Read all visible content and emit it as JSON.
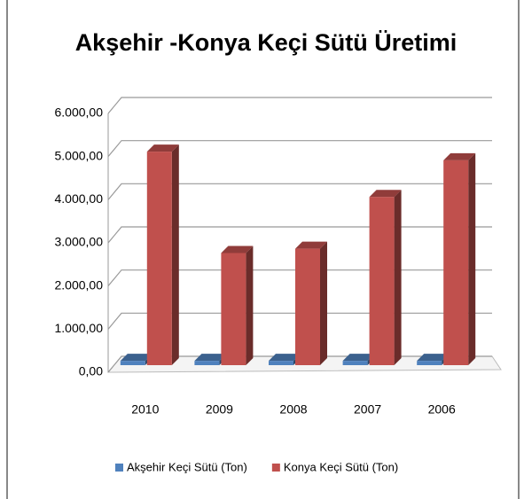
{
  "chart_data": {
    "type": "bar3d",
    "title": "Akşehir -Konya Keçi Sütü Üretimi",
    "categories": [
      "2010",
      "2009",
      "2008",
      "2007",
      "2006"
    ],
    "series": [
      {
        "name": "Akşehir Keçi Sütü (Ton)",
        "color": "#4f81bd",
        "values": [
          100,
          100,
          100,
          100,
          100
        ]
      },
      {
        "name": "Konya Keçi Sütü (Ton)",
        "color": "#c0504d",
        "values": [
          4950,
          2600,
          2700,
          3900,
          4750
        ]
      }
    ],
    "ylim": [
      0,
      6000
    ],
    "yticks": [
      {
        "value": 0,
        "label": "0,00"
      },
      {
        "value": 1000,
        "label": "1.000,00"
      },
      {
        "value": 2000,
        "label": "2.000,00"
      },
      {
        "value": 3000,
        "label": "3.000,00"
      },
      {
        "value": 4000,
        "label": "4.000,00"
      },
      {
        "value": 5000,
        "label": "5.000,00"
      },
      {
        "value": 6000,
        "label": "6.000,00"
      }
    ],
    "grid": true,
    "legend": "bottom"
  }
}
